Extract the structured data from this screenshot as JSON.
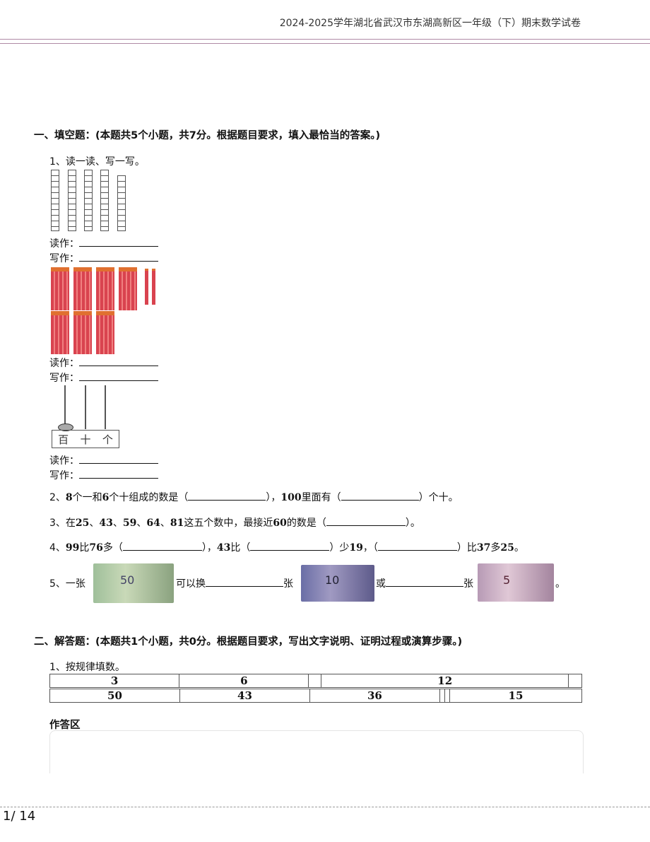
{
  "header": {
    "title": "2024-2025学年湖北省武汉市东湖高新区一年级（下）期末数学试卷"
  },
  "section1": {
    "title": "一、填空题：(本题共5个小题，共7分。根据题目要求，填入最恰当的答案。)",
    "q1": {
      "text": "1、读一读、写一写。",
      "read": "读作：",
      "write": "写作：",
      "abacus_labels": [
        "百",
        "十",
        "个"
      ]
    },
    "q2": {
      "p1": "2、",
      "n1": "8",
      "p2": "个一和",
      "n2": "6",
      "p3": "个十组成的数是（",
      "p4": "），",
      "n3": "100",
      "p5": "里面有（",
      "p6": "）个十。"
    },
    "q3": {
      "p1": "3、在",
      "nums": [
        "25",
        "43",
        "59",
        "64",
        "81"
      ],
      "sep": "、",
      "p2": "这五个数中，最接近",
      "n": "60",
      "p3": "的数是（",
      "p4": "）。"
    },
    "q4": {
      "p1": "4、",
      "a": "99",
      "p2": "比",
      "b": "76",
      "p3": "多（",
      "p4": "），",
      "c": "43",
      "p5": "比（",
      "p6": "）少",
      "d": "19",
      "p7": "，（",
      "p8": "）比",
      "e": "37",
      "p9": "多",
      "f": "25",
      "p10": "。"
    },
    "q5": {
      "p1": "5、一张",
      "p2": "可以换",
      "p3": "张",
      "p4": "或",
      "p5": "张",
      "p6": "。",
      "notes": [
        "50",
        "10",
        "5"
      ]
    }
  },
  "section2": {
    "title": "二、解答题：(本题共1个小题，共0分。根据题目要求，写出文字说明、证明过程或演算步骤。)",
    "q1": {
      "text": "1、按规律填数。",
      "row1": [
        "3",
        "6",
        "",
        "12",
        ""
      ],
      "row2": [
        "50",
        "43",
        "36",
        "",
        "",
        "15"
      ]
    },
    "answer_area": "作答区"
  },
  "footer": {
    "page": "1/ 14"
  }
}
